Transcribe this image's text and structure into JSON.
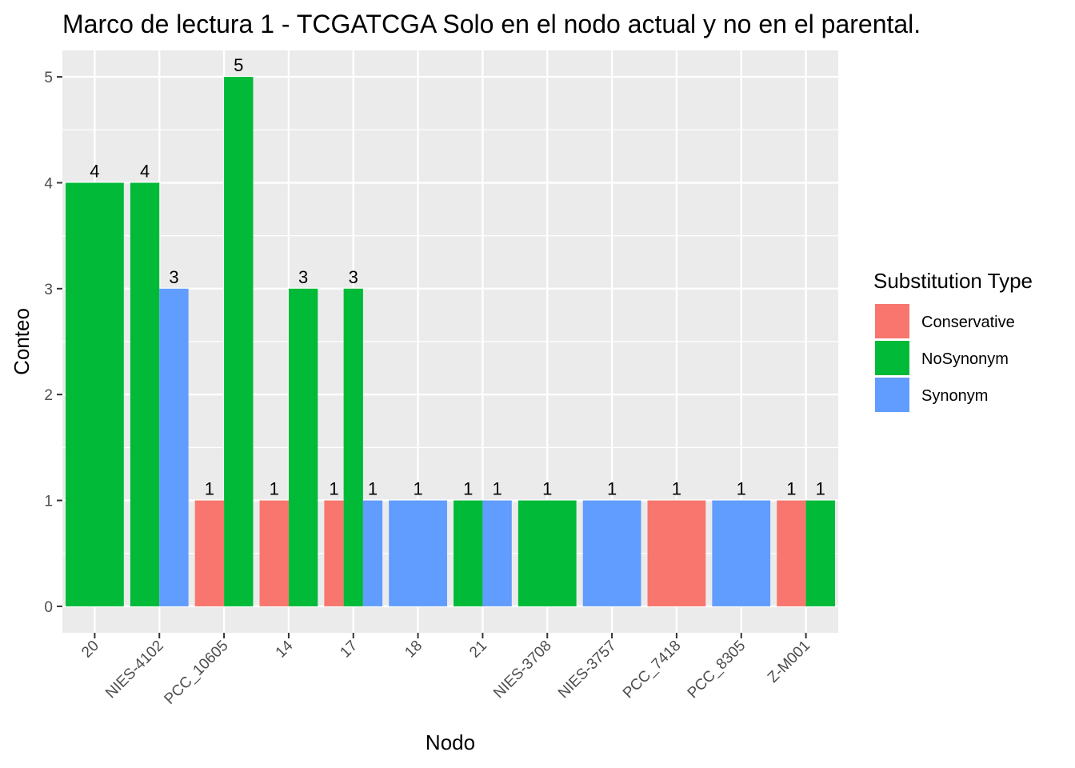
{
  "chart_data": {
    "type": "bar",
    "title": "Marco de lectura 1 - TCGATCGA Solo en el nodo actual y no en el parental.",
    "xlabel": "Nodo",
    "ylabel": "Conteo",
    "ylim": [
      -0.25,
      5.25
    ],
    "yticks": [
      0,
      1,
      2,
      3,
      4,
      5
    ],
    "grid": true,
    "legend": {
      "title": "Substitution Type",
      "position": "right"
    },
    "categories": [
      "20",
      "NIES-4102",
      "PCC_10605",
      "14",
      "17",
      "18",
      "21",
      "NIES-3708",
      "NIES-3757",
      "PCC_7418",
      "PCC_8305",
      "Z-M001"
    ],
    "series": [
      {
        "name": "Conservative",
        "color": "#F8766D",
        "values": [
          null,
          null,
          1,
          1,
          1,
          null,
          null,
          null,
          null,
          1,
          null,
          1
        ]
      },
      {
        "name": "NoSynonym",
        "color": "#00BA38",
        "values": [
          4,
          4,
          5,
          3,
          3,
          null,
          1,
          1,
          null,
          null,
          null,
          1
        ]
      },
      {
        "name": "Synonym",
        "color": "#619CFF",
        "values": [
          null,
          3,
          null,
          null,
          1,
          1,
          1,
          null,
          1,
          null,
          1,
          null
        ]
      }
    ]
  }
}
